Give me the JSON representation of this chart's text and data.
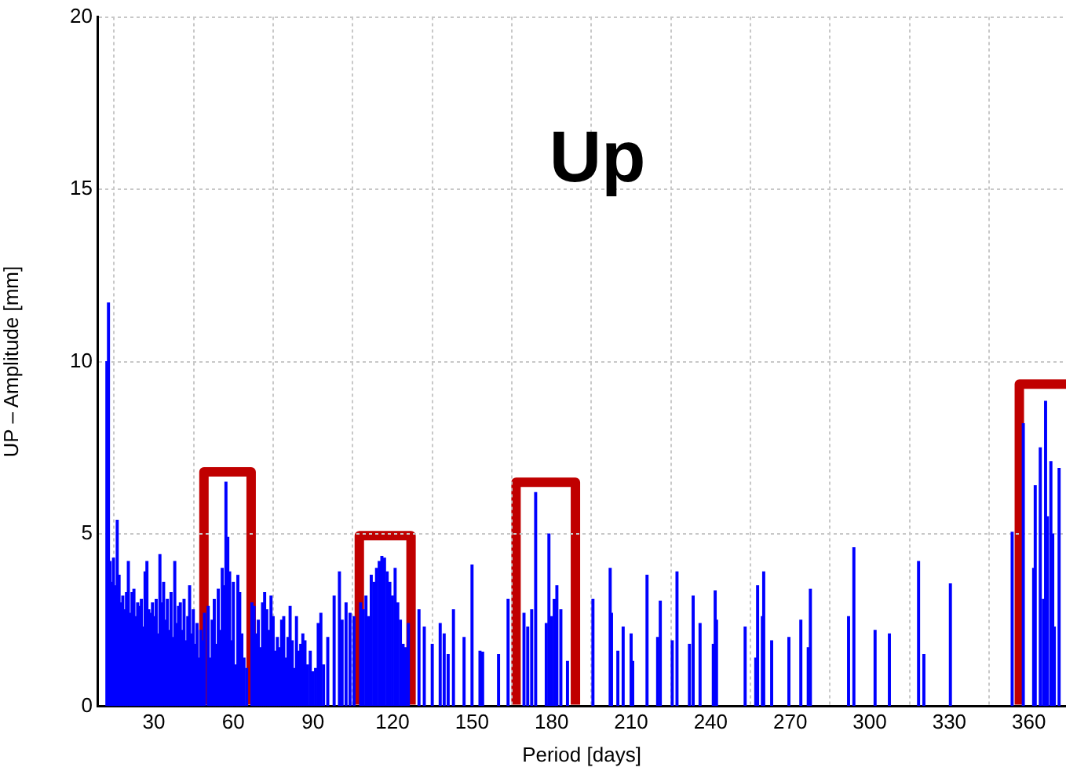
{
  "chart_data": {
    "type": "bar",
    "title": "Up",
    "xlabel": "Period [days]",
    "ylabel": "UP – Amplitude [mm]",
    "x": [
      12.3,
      12.9,
      13.5,
      14.2,
      14.8,
      15.5,
      16.2,
      16.9,
      17.6,
      18.3,
      19.0,
      19.7,
      20.4,
      21.1,
      21.8,
      22.5,
      23.2,
      23.9,
      24.6,
      25.3,
      26.0,
      26.7,
      27.4,
      28.1,
      28.8,
      29.5,
      30.2,
      30.9,
      31.6,
      32.3,
      33.0,
      33.7,
      34.4,
      35.1,
      35.8,
      36.5,
      37.2,
      37.9,
      38.6,
      39.3,
      40.0,
      40.7,
      41.4,
      42.1,
      42.8,
      43.5,
      44.2,
      44.9,
      45.6,
      46.3,
      47.0,
      47.7,
      48.4,
      49.1,
      49.8,
      50.5,
      51.2,
      52.0,
      52.8,
      53.5,
      54.3,
      55.0,
      55.8,
      56.5,
      57.2,
      57.9,
      58.6,
      59.3,
      60.0,
      61.0,
      61.7,
      62.4,
      63.2,
      64.0,
      65.0,
      67.0,
      67.8,
      68.6,
      69.4,
      70.2,
      71.0,
      71.8,
      72.6,
      73.4,
      74.2,
      75.0,
      75.8,
      76.6,
      77.4,
      78.2,
      79.0,
      79.8,
      80.6,
      81.4,
      82.2,
      83.0,
      83.8,
      84.6,
      85.4,
      86.2,
      87.0,
      88.0,
      89.0,
      90.0,
      91.0,
      92.0,
      93.0,
      94.0,
      95.6,
      98.0,
      100.0,
      101.0,
      102.5,
      104.0,
      105.5,
      108.0,
      109.0,
      110.0,
      111.0,
      112.0,
      113.0,
      114.0,
      115.0,
      116.0,
      117.0,
      118.0,
      119.0,
      120.0,
      121.0,
      122.0,
      123.0,
      124.0,
      125.0,
      126.0,
      130.0,
      132.0,
      135.0,
      138.0,
      139.5,
      141.0,
      143.0,
      147.0,
      150.0,
      153.0,
      154.0,
      160.0,
      163.6,
      169.6,
      171.0,
      172.5,
      174.0,
      178.0,
      179.0,
      180.0,
      181.0,
      182.0,
      183.5,
      186.0,
      195.6,
      202.1,
      202.6,
      205.0,
      207.0,
      210.0,
      210.6,
      216.0,
      220.0,
      221.0,
      225.5,
      227.3,
      232.0,
      233.4,
      236.0,
      241.0,
      241.7,
      242.2,
      253.0,
      257.0,
      257.7,
      259.5,
      260.0,
      263.0,
      269.5,
      274.0,
      276.8,
      277.6,
      292.0,
      294.0,
      302.0,
      307.4,
      318.4,
      320.4,
      330.4,
      353.7,
      357.9,
      361.8,
      362.4,
      364.3,
      365.5,
      366.3,
      367.0,
      368.3,
      369.0,
      369.6,
      371.4
    ],
    "values": [
      10.0,
      11.7,
      4.2,
      3.6,
      4.3,
      3.5,
      5.4,
      3.8,
      3.0,
      3.2,
      2.8,
      3.3,
      4.2,
      2.7,
      3.3,
      3.4,
      2.6,
      3.0,
      2.9,
      3.1,
      2.3,
      3.9,
      4.2,
      2.8,
      2.7,
      3.0,
      2.6,
      3.1,
      2.1,
      4.4,
      3.0,
      3.6,
      2.5,
      3.1,
      2.2,
      3.3,
      2.0,
      4.2,
      2.4,
      2.9,
      3.0,
      2.2,
      3.1,
      1.9,
      2.6,
      3.5,
      2.1,
      2.8,
      1.8,
      2.4,
      1.4,
      2.2,
      1.9,
      2.7,
      null,
      2.9,
      1.4,
      2.5,
      3.1,
      1.8,
      3.4,
      2.2,
      4.0,
      3.5,
      6.5,
      4.9,
      3.9,
      1.9,
      3.6,
      1.2,
      3.8,
      3.3,
      2.1,
      1.4,
      1.1,
      3.0,
      2.9,
      2.1,
      2.5,
      1.7,
      3.0,
      3.3,
      2.8,
      2.2,
      3.2,
      2.6,
      1.6,
      2.0,
      1.7,
      2.5,
      2.6,
      1.4,
      2.0,
      2.9,
      1.9,
      1.1,
      2.6,
      1.6,
      1.8,
      2.1,
      1.9,
      1.2,
      1.6,
      1.0,
      1.1,
      2.4,
      2.7,
      1.2,
      2.0,
      3.2,
      3.9,
      2.5,
      3.0,
      2.7,
      2.6,
      3.0,
      2.8,
      3.2,
      2.6,
      3.8,
      3.6,
      4.0,
      4.2,
      4.35,
      4.3,
      3.9,
      3.6,
      3.2,
      4.0,
      3.0,
      2.5,
      1.8,
      1.7,
      2.4,
      2.8,
      2.3,
      1.8,
      2.4,
      2.1,
      1.5,
      2.8,
      2.0,
      4.1,
      1.6,
      1.57,
      1.5,
      3.1,
      2.7,
      2.3,
      2.8,
      6.2,
      2.4,
      5.0,
      2.6,
      3.1,
      3.5,
      2.8,
      1.3,
      3.1,
      4.0,
      2.7,
      1.6,
      2.3,
      2.1,
      1.3,
      3.8,
      2.0,
      3.05,
      1.9,
      3.9,
      1.8,
      3.2,
      2.4,
      1.8,
      3.35,
      2.5,
      2.3,
      1.4,
      3.5,
      2.6,
      3.9,
      1.9,
      2.0,
      2.5,
      1.7,
      3.4,
      2.6,
      4.6,
      2.2,
      2.1,
      4.2,
      1.5,
      3.55,
      5.05,
      8.2,
      4.0,
      6.4,
      7.5,
      3.1,
      8.85,
      5.5,
      7.1,
      5.0,
      2.3,
      6.9
    ],
    "color": "#0000ff",
    "xlim": [
      8.7,
      374
    ],
    "xticks": [
      30,
      60,
      90,
      120,
      150,
      180,
      210,
      240,
      270,
      300,
      330,
      360
    ],
    "ylim": [
      0,
      20
    ],
    "yticks": [
      0,
      5,
      10,
      15,
      20
    ],
    "grid": true
  }
}
